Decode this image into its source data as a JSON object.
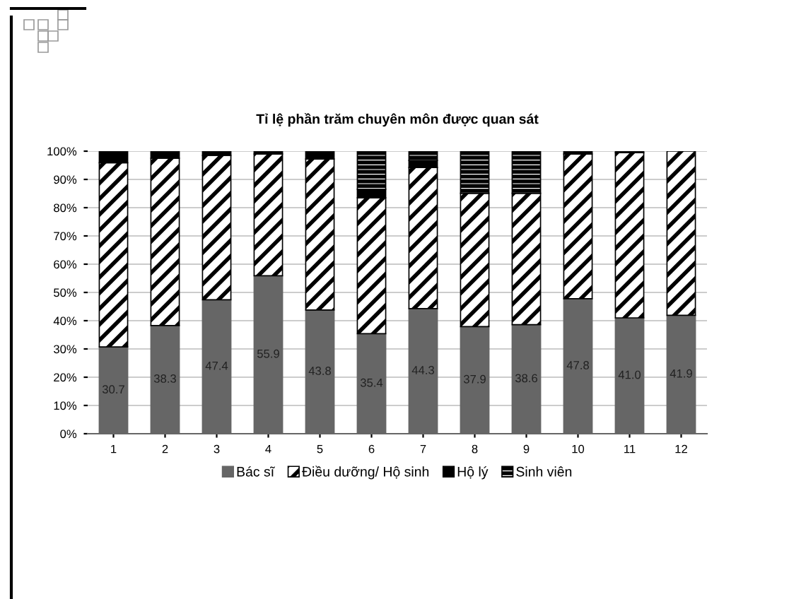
{
  "chart_data": {
    "type": "bar",
    "stacked": true,
    "title": "Tỉ lệ phần trăm chuyên môn được quan sát",
    "categories": [
      "1",
      "2",
      "3",
      "4",
      "5",
      "6",
      "7",
      "8",
      "9",
      "10",
      "11",
      "12"
    ],
    "series": [
      {
        "name": "Bác sĩ",
        "color": "#666666",
        "values": [
          30.7,
          38.3,
          47.4,
          55.9,
          43.8,
          35.4,
          44.3,
          37.9,
          38.6,
          47.8,
          41.0,
          41.9
        ],
        "value_labels": [
          "30.7",
          "38.3",
          "47.4",
          "55.9",
          "43.8",
          "35.4",
          "44.3",
          "37.9",
          "38.6",
          "47.8",
          "41.0",
          "41.9"
        ]
      },
      {
        "name": "Điều dưỡng/ Hộ sinh",
        "color": "#000000",
        "values": [
          65.2,
          59.2,
          51.1,
          43.1,
          53.4,
          48.1,
          49.9,
          47.2,
          46.5,
          51.2,
          58.5,
          58.1
        ]
      },
      {
        "name": "Hộ lý",
        "color": "#000000",
        "values": [
          4.1,
          2.5,
          1.5,
          1.0,
          2.8,
          3.0,
          2.5,
          0,
          0,
          1.0,
          0.5,
          0
        ]
      },
      {
        "name": "Sinh viên",
        "color": "#000000",
        "values": [
          0,
          0,
          0,
          0,
          0,
          13.5,
          3.3,
          14.9,
          14.9,
          0,
          0,
          0
        ]
      }
    ],
    "ylim": [
      0,
      100
    ],
    "yticks": [
      {
        "value": 0,
        "label": "0%"
      },
      {
        "value": 10,
        "label": "10%"
      },
      {
        "value": 20,
        "label": "20%"
      },
      {
        "value": 30,
        "label": "30%"
      },
      {
        "value": 40,
        "label": "40%"
      },
      {
        "value": 50,
        "label": "50%"
      },
      {
        "value": 60,
        "label": "60%"
      },
      {
        "value": 70,
        "label": "70%"
      },
      {
        "value": 80,
        "label": "80%"
      },
      {
        "value": 90,
        "label": "90%"
      },
      {
        "value": 100,
        "label": "100%"
      }
    ],
    "grid": "y",
    "legend": "bottom"
  }
}
